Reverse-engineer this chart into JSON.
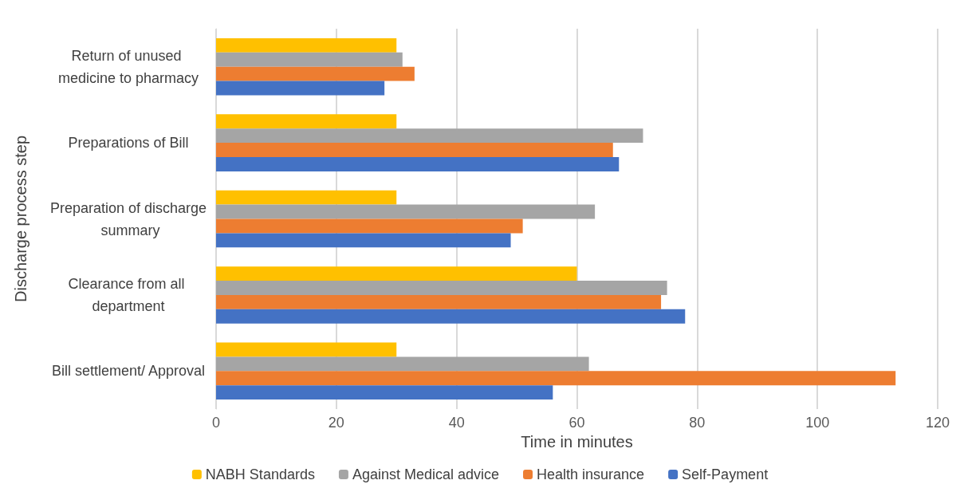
{
  "chart_data": {
    "type": "bar",
    "orientation": "horizontal",
    "xlabel": "Time in minutes",
    "ylabel": "Discharge process step",
    "categories": [
      "Return of unused medicine to pharmacy",
      "Preparations of Bill",
      "Preparation of discharge summary",
      "Clearance from all department",
      "Bill settlement/ Approval"
    ],
    "series": [
      {
        "name": "NABH Standards",
        "color": "#ffc000",
        "values": [
          30,
          30,
          30,
          60,
          30
        ]
      },
      {
        "name": "Against Medical advice",
        "color": "#a5a5a5",
        "values": [
          31,
          71,
          63,
          75,
          62
        ]
      },
      {
        "name": "Health insurance",
        "color": "#ed7d31",
        "values": [
          33,
          66,
          51,
          74,
          113
        ]
      },
      {
        "name": "Self-Payment",
        "color": "#4472c4",
        "values": [
          28,
          67,
          49,
          78,
          56
        ]
      }
    ],
    "xlim": [
      0,
      120
    ],
    "xticks": [
      0,
      20,
      40,
      60,
      80,
      100,
      120
    ],
    "grid": "x",
    "legend": "bottom"
  }
}
